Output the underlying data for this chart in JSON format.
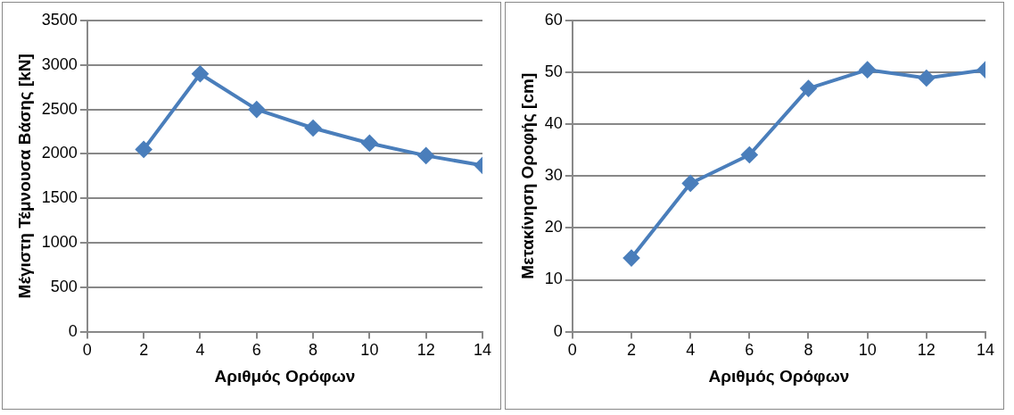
{
  "chart_data": [
    {
      "type": "line",
      "xlabel": "Αριθμός Ορόφων",
      "ylabel": "Μέγιστη Τέμνουσα Βάσης [kN]",
      "x": [
        2,
        4,
        6,
        8,
        10,
        12,
        14
      ],
      "series": [
        {
          "color": "#4a7ebb",
          "values": [
            2050,
            2900,
            2500,
            2290,
            2120,
            1980,
            1870
          ]
        }
      ],
      "xlim": [
        0,
        14
      ],
      "xticks": [
        0,
        2,
        4,
        6,
        8,
        10,
        12,
        14
      ],
      "ylim": [
        0,
        3500
      ],
      "yticks": [
        0,
        500,
        1000,
        1500,
        2000,
        2500,
        3000,
        3500
      ],
      "grid": "y",
      "legend": false,
      "marker": "diamond",
      "line_style": "solid"
    },
    {
      "type": "line",
      "xlabel": "Αριθμός Ορόφων",
      "ylabel": "Μετακίνηση Οροφής [cm]",
      "x": [
        2,
        4,
        6,
        8,
        10,
        12,
        14
      ],
      "series": [
        {
          "color": "#4a7ebb",
          "values": [
            14.2,
            28.6,
            34.1,
            46.9,
            50.5,
            48.9,
            50.5
          ]
        }
      ],
      "xlim": [
        0,
        14
      ],
      "xticks": [
        0,
        2,
        4,
        6,
        8,
        10,
        12,
        14
      ],
      "ylim": [
        0,
        60
      ],
      "yticks": [
        0,
        10,
        20,
        30,
        40,
        50,
        60
      ],
      "grid": "y",
      "legend": false,
      "marker": "diamond",
      "line_style": "solid"
    }
  ]
}
